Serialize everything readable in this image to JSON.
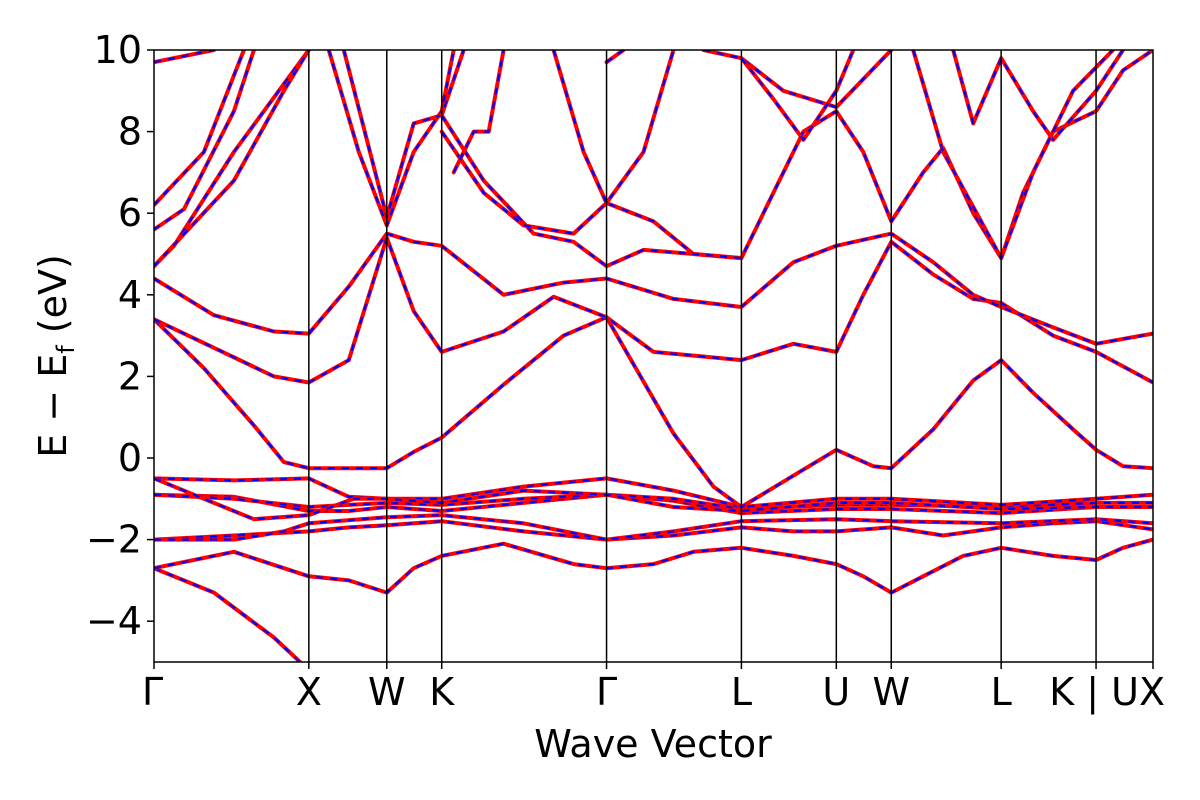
{
  "chart_data": {
    "type": "line",
    "title": "",
    "xlabel": "Wave Vector",
    "ylabel": "E − E",
    "ylabel_subscript": "f",
    "ylabel_unit": " (eV)",
    "ylim": [
      -5,
      10
    ],
    "yticks": [
      -4,
      -2,
      0,
      2,
      4,
      6,
      8,
      10
    ],
    "ytick_labels": [
      "−4",
      "−2",
      "0",
      "2",
      "4",
      "6",
      "8",
      "10"
    ],
    "grid": false,
    "legend": "none",
    "kpoints": [
      {
        "x": 0.0,
        "label": "Γ"
      },
      {
        "x": 0.155,
        "label": "X"
      },
      {
        "x": 0.233,
        "label": "W"
      },
      {
        "x": 0.288,
        "label": "K"
      },
      {
        "x": 0.453,
        "label": "Γ"
      },
      {
        "x": 0.588,
        "label": "L"
      },
      {
        "x": 0.683,
        "label": "U"
      },
      {
        "x": 0.738,
        "label": "W"
      },
      {
        "x": 0.848,
        "label": "L"
      },
      {
        "x": 0.943,
        "label": "K | U"
      },
      {
        "x": 1.0,
        "label": "X"
      }
    ],
    "series_colors": {
      "dft": "#ff0000",
      "fit": "#0000ff"
    },
    "series": [
      {
        "values": [
          [
            0.0,
            -2.7
          ],
          [
            0.06,
            -3.3
          ],
          [
            0.12,
            -4.4
          ],
          [
            0.155,
            -5.2
          ]
        ]
      },
      {
        "values": [
          [
            0.0,
            -2.7
          ],
          [
            0.08,
            -2.3
          ],
          [
            0.155,
            -2.9
          ],
          [
            0.195,
            -3.0
          ],
          [
            0.233,
            -3.3
          ],
          [
            0.26,
            -2.7
          ],
          [
            0.288,
            -2.4
          ],
          [
            0.35,
            -2.1
          ],
          [
            0.42,
            -2.6
          ],
          [
            0.453,
            -2.7
          ],
          [
            0.5,
            -2.6
          ],
          [
            0.54,
            -2.3
          ],
          [
            0.588,
            -2.2
          ],
          [
            0.64,
            -2.4
          ],
          [
            0.683,
            -2.6
          ],
          [
            0.71,
            -2.9
          ],
          [
            0.738,
            -3.3
          ],
          [
            0.77,
            -2.9
          ],
          [
            0.81,
            -2.4
          ],
          [
            0.848,
            -2.2
          ],
          [
            0.9,
            -2.4
          ],
          [
            0.943,
            -2.5
          ],
          [
            0.97,
            -2.2
          ],
          [
            1.0,
            -2.0
          ]
        ]
      },
      {
        "values": [
          [
            0.0,
            -2.0
          ],
          [
            0.08,
            -1.9
          ],
          [
            0.155,
            -1.8
          ],
          [
            0.195,
            -1.7
          ],
          [
            0.233,
            -1.65
          ],
          [
            0.288,
            -1.55
          ],
          [
            0.37,
            -1.8
          ],
          [
            0.453,
            -2.0
          ],
          [
            0.52,
            -1.9
          ],
          [
            0.588,
            -1.7
          ],
          [
            0.64,
            -1.8
          ],
          [
            0.683,
            -1.8
          ],
          [
            0.738,
            -1.7
          ],
          [
            0.79,
            -1.9
          ],
          [
            0.848,
            -1.7
          ],
          [
            0.9,
            -1.6
          ],
          [
            0.943,
            -1.55
          ],
          [
            1.0,
            -1.75
          ]
        ]
      },
      {
        "values": [
          [
            0.0,
            -2.0
          ],
          [
            0.08,
            -2.0
          ],
          [
            0.13,
            -1.8
          ],
          [
            0.155,
            -1.6
          ],
          [
            0.233,
            -1.45
          ],
          [
            0.288,
            -1.4
          ],
          [
            0.37,
            -1.6
          ],
          [
            0.453,
            -2.0
          ],
          [
            0.52,
            -1.8
          ],
          [
            0.588,
            -1.55
          ],
          [
            0.683,
            -1.5
          ],
          [
            0.738,
            -1.55
          ],
          [
            0.848,
            -1.6
          ],
          [
            0.943,
            -1.5
          ],
          [
            1.0,
            -1.6
          ]
        ]
      },
      {
        "values": [
          [
            0.0,
            -0.9
          ],
          [
            0.08,
            -0.95
          ],
          [
            0.155,
            -1.3
          ],
          [
            0.195,
            -1.3
          ],
          [
            0.233,
            -1.2
          ],
          [
            0.288,
            -1.3
          ],
          [
            0.37,
            -1.1
          ],
          [
            0.453,
            -0.9
          ],
          [
            0.52,
            -1.05
          ],
          [
            0.588,
            -1.35
          ],
          [
            0.683,
            -1.25
          ],
          [
            0.738,
            -1.25
          ],
          [
            0.848,
            -1.35
          ],
          [
            0.943,
            -1.2
          ],
          [
            1.0,
            -1.2
          ]
        ]
      },
      {
        "values": [
          [
            0.0,
            -0.9
          ],
          [
            0.08,
            -1.0
          ],
          [
            0.155,
            -1.2
          ],
          [
            0.233,
            -1.1
          ],
          [
            0.288,
            -1.15
          ],
          [
            0.37,
            -1.0
          ],
          [
            0.453,
            -0.9
          ],
          [
            0.52,
            -1.0
          ],
          [
            0.588,
            -1.25
          ],
          [
            0.683,
            -1.15
          ],
          [
            0.738,
            -1.15
          ],
          [
            0.848,
            -1.2
          ],
          [
            0.943,
            -1.1
          ],
          [
            1.0,
            -1.1
          ]
        ]
      },
      {
        "values": [
          [
            0.0,
            -0.5
          ],
          [
            0.08,
            -0.55
          ],
          [
            0.155,
            -0.5
          ],
          [
            0.195,
            -0.95
          ],
          [
            0.233,
            -1.0
          ],
          [
            0.288,
            -1.0
          ],
          [
            0.37,
            -0.7
          ],
          [
            0.453,
            -0.5
          ],
          [
            0.52,
            -0.8
          ],
          [
            0.588,
            -1.2
          ],
          [
            0.683,
            -1.0
          ],
          [
            0.738,
            -1.0
          ],
          [
            0.848,
            -1.15
          ],
          [
            0.943,
            -1.0
          ],
          [
            1.0,
            -0.9
          ]
        ]
      },
      {
        "values": [
          [
            0.0,
            -0.5
          ],
          [
            0.05,
            -1.0
          ],
          [
            0.1,
            -1.5
          ],
          [
            0.155,
            -1.4
          ],
          [
            0.2,
            -1.0
          ],
          [
            0.233,
            -1.0
          ],
          [
            0.288,
            -1.1
          ],
          [
            0.37,
            -0.8
          ],
          [
            0.453,
            -0.9
          ],
          [
            0.52,
            -1.2
          ],
          [
            0.588,
            -1.3
          ],
          [
            0.683,
            -1.1
          ],
          [
            0.738,
            -1.1
          ],
          [
            0.848,
            -1.25
          ],
          [
            0.943,
            -1.2
          ],
          [
            1.0,
            -1.2
          ]
        ]
      },
      {
        "values": [
          [
            0.0,
            3.4
          ],
          [
            0.05,
            2.2
          ],
          [
            0.1,
            0.8
          ],
          [
            0.13,
            -0.1
          ],
          [
            0.155,
            -0.25
          ],
          [
            0.233,
            -0.25
          ],
          [
            0.26,
            0.15
          ],
          [
            0.288,
            0.5
          ],
          [
            0.35,
            1.8
          ],
          [
            0.41,
            3.0
          ],
          [
            0.453,
            3.45
          ],
          [
            0.48,
            2.3
          ],
          [
            0.52,
            0.6
          ],
          [
            0.56,
            -0.7
          ],
          [
            0.588,
            -1.2
          ],
          [
            0.683,
            0.2
          ],
          [
            0.72,
            -0.2
          ],
          [
            0.738,
            -0.25
          ],
          [
            0.78,
            0.7
          ],
          [
            0.82,
            1.9
          ],
          [
            0.848,
            2.4
          ],
          [
            0.88,
            1.6
          ],
          [
            0.92,
            0.7
          ],
          [
            0.943,
            0.2
          ],
          [
            0.97,
            -0.2
          ],
          [
            1.0,
            -0.25
          ]
        ]
      },
      {
        "values": [
          [
            0.0,
            3.4
          ],
          [
            0.06,
            2.7
          ],
          [
            0.12,
            2.0
          ],
          [
            0.155,
            1.85
          ],
          [
            0.195,
            2.4
          ],
          [
            0.233,
            5.4
          ],
          [
            0.26,
            3.6
          ],
          [
            0.288,
            2.6
          ],
          [
            0.35,
            3.1
          ],
          [
            0.4,
            3.95
          ],
          [
            0.453,
            3.45
          ],
          [
            0.5,
            2.6
          ],
          [
            0.588,
            2.4
          ],
          [
            0.64,
            2.8
          ],
          [
            0.683,
            2.6
          ],
          [
            0.71,
            4.0
          ],
          [
            0.738,
            5.3
          ],
          [
            0.78,
            4.5
          ],
          [
            0.82,
            3.9
          ],
          [
            0.848,
            3.8
          ],
          [
            0.9,
            3.0
          ],
          [
            0.943,
            2.6
          ],
          [
            1.0,
            1.85
          ]
        ]
      },
      {
        "values": [
          [
            0.0,
            4.4
          ],
          [
            0.06,
            3.5
          ],
          [
            0.12,
            3.1
          ],
          [
            0.155,
            3.05
          ],
          [
            0.195,
            4.2
          ],
          [
            0.233,
            5.5
          ],
          [
            0.26,
            5.3
          ],
          [
            0.288,
            5.2
          ],
          [
            0.35,
            4.0
          ],
          [
            0.41,
            4.3
          ],
          [
            0.453,
            4.4
          ],
          [
            0.52,
            3.9
          ],
          [
            0.588,
            3.7
          ],
          [
            0.64,
            4.8
          ],
          [
            0.683,
            5.2
          ],
          [
            0.738,
            5.5
          ],
          [
            0.78,
            4.8
          ],
          [
            0.82,
            4.0
          ],
          [
            0.848,
            3.7
          ],
          [
            0.9,
            3.2
          ],
          [
            0.943,
            2.8
          ],
          [
            1.0,
            3.05
          ]
        ]
      },
      {
        "values": [
          [
            0.0,
            4.7
          ],
          [
            0.02,
            5.2
          ],
          [
            0.08,
            7.5
          ],
          [
            0.155,
            10.0
          ]
        ]
      },
      {
        "values": [
          [
            0.0,
            4.7
          ],
          [
            0.08,
            6.8
          ],
          [
            0.13,
            9.0
          ],
          [
            0.155,
            10.0
          ]
        ]
      },
      {
        "values": [
          [
            0.0,
            5.6
          ],
          [
            0.03,
            6.1
          ],
          [
            0.08,
            8.5
          ],
          [
            0.1,
            10.0
          ]
        ]
      },
      {
        "values": [
          [
            0.0,
            6.2
          ],
          [
            0.05,
            7.5
          ],
          [
            0.09,
            10.0
          ]
        ]
      },
      {
        "values": [
          [
            0.0,
            9.7
          ],
          [
            0.06,
            10.0
          ]
        ]
      },
      {
        "values": [
          [
            0.175,
            10.0
          ],
          [
            0.205,
            7.5
          ],
          [
            0.233,
            5.7
          ],
          [
            0.26,
            7.5
          ],
          [
            0.288,
            8.5
          ],
          [
            0.3,
            10.0
          ]
        ]
      },
      {
        "values": [
          [
            0.19,
            10.0
          ],
          [
            0.212,
            7.9
          ],
          [
            0.233,
            5.9
          ],
          [
            0.26,
            8.2
          ],
          [
            0.288,
            8.4
          ],
          [
            0.31,
            10.0
          ]
        ]
      },
      {
        "values": [
          [
            0.288,
            8.4
          ],
          [
            0.33,
            6.8
          ],
          [
            0.38,
            5.5
          ],
          [
            0.42,
            5.3
          ],
          [
            0.453,
            4.7
          ],
          [
            0.49,
            5.1
          ],
          [
            0.54,
            5.0
          ],
          [
            0.588,
            4.9
          ],
          [
            0.62,
            6.5
          ],
          [
            0.65,
            8.0
          ],
          [
            0.683,
            8.5
          ],
          [
            0.71,
            7.5
          ],
          [
            0.738,
            5.8
          ],
          [
            0.77,
            7.0
          ],
          [
            0.79,
            7.6
          ],
          [
            0.82,
            6.0
          ],
          [
            0.848,
            4.9
          ],
          [
            0.87,
            6.5
          ],
          [
            0.9,
            8.0
          ],
          [
            0.943,
            8.5
          ],
          [
            0.97,
            9.5
          ],
          [
            1.0,
            10.0
          ]
        ]
      },
      {
        "values": [
          [
            0.288,
            8.0
          ],
          [
            0.33,
            6.5
          ],
          [
            0.37,
            5.7
          ],
          [
            0.42,
            5.5
          ],
          [
            0.453,
            6.25
          ],
          [
            0.5,
            5.8
          ],
          [
            0.54,
            5.0
          ],
          [
            0.588,
            4.9
          ]
        ]
      },
      {
        "values": [
          [
            0.3,
            7.0
          ],
          [
            0.32,
            8.0
          ],
          [
            0.335,
            8.0
          ],
          [
            0.35,
            10.0
          ]
        ]
      },
      {
        "values": [
          [
            0.4,
            10.0
          ],
          [
            0.43,
            7.5
          ],
          [
            0.453,
            6.25
          ],
          [
            0.49,
            7.5
          ],
          [
            0.52,
            10.0
          ]
        ]
      },
      {
        "values": [
          [
            0.453,
            9.7
          ],
          [
            0.47,
            10.0
          ]
        ]
      },
      {
        "values": [
          [
            0.55,
            10.0
          ],
          [
            0.588,
            9.8
          ],
          [
            0.63,
            9.0
          ],
          [
            0.683,
            8.6
          ],
          [
            0.738,
            10.0
          ]
        ]
      },
      {
        "values": [
          [
            0.588,
            9.8
          ],
          [
            0.62,
            8.8
          ],
          [
            0.65,
            7.8
          ],
          [
            0.683,
            9.0
          ],
          [
            0.7,
            10.0
          ]
        ]
      },
      {
        "values": [
          [
            0.8,
            10.0
          ],
          [
            0.82,
            8.2
          ],
          [
            0.848,
            9.8
          ],
          [
            0.88,
            8.5
          ],
          [
            0.9,
            7.8
          ],
          [
            0.943,
            9.0
          ],
          [
            0.97,
            10.0
          ]
        ]
      },
      {
        "values": [
          [
            0.76,
            10.0
          ],
          [
            0.79,
            7.5
          ],
          [
            0.848,
            4.9
          ],
          [
            0.88,
            7.0
          ],
          [
            0.92,
            9.0
          ],
          [
            0.96,
            10.0
          ]
        ]
      }
    ]
  }
}
